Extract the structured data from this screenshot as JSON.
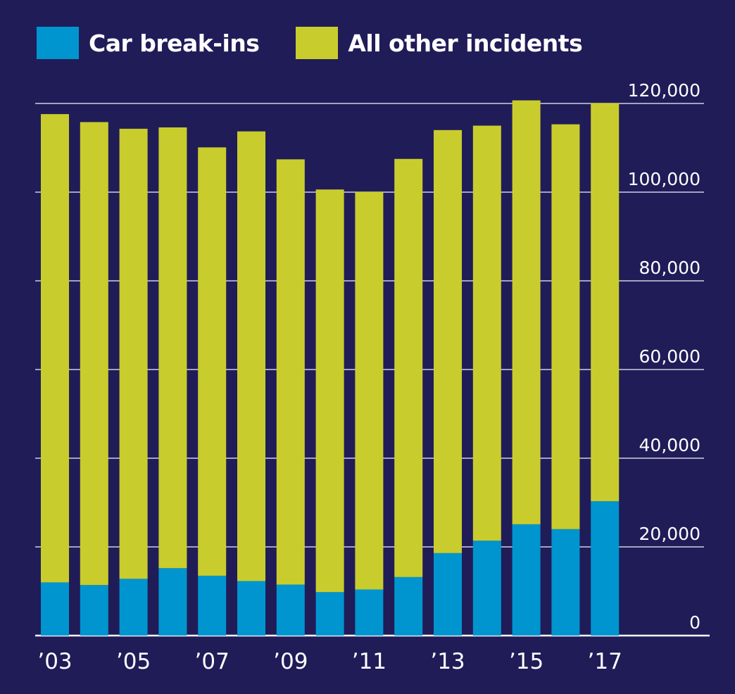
{
  "chart_data": {
    "type": "bar",
    "stacked": true,
    "categories": [
      "'03",
      "'04",
      "'05",
      "'06",
      "'07",
      "'08",
      "'09",
      "'10",
      "'11",
      "'12",
      "'13",
      "'14",
      "'15",
      "'16",
      "'17"
    ],
    "x_tick_labels": [
      "’03",
      "",
      "’05",
      "",
      "’07",
      "",
      "’09",
      "",
      "’11",
      "",
      "’13",
      "",
      "’15",
      "",
      "’17"
    ],
    "series": [
      {
        "name": "Car break-ins",
        "color": "#0095cf",
        "values": [
          12000,
          11400,
          12800,
          15200,
          13500,
          12300,
          11500,
          9800,
          10400,
          13200,
          18600,
          21400,
          25100,
          24000,
          30300
        ]
      },
      {
        "name": "All other incidents",
        "color": "#c9cc2d",
        "values": [
          105600,
          104400,
          101500,
          99400,
          96600,
          101400,
          95900,
          90800,
          89700,
          94300,
          95400,
          93600,
          95600,
          91300,
          89800
        ]
      }
    ],
    "ylim": [
      0,
      120000
    ],
    "y_ticks": [
      0,
      20000,
      40000,
      60000,
      80000,
      100000,
      120000
    ],
    "y_tick_labels": [
      "0",
      "20,000",
      "40,000",
      "60,000",
      "80,000",
      "100,000",
      "120,000"
    ],
    "y_axis_side": "right",
    "grid": true,
    "legend_position": "top-left"
  },
  "colors": {
    "background": "#201c58",
    "gridline": "#ffffff",
    "text": "#ffffff"
  }
}
